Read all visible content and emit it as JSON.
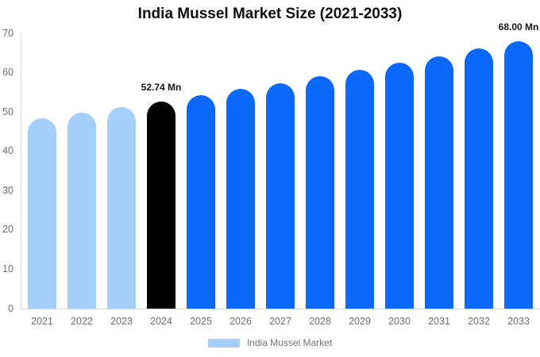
{
  "title": "India Mussel Market Size (2021-2033)",
  "legend": {
    "label": "India Mussel Market",
    "swatch_color": "#a3cffa"
  },
  "colors": {
    "historical_bar": "#a3cffa",
    "base_year_bar": "#000000",
    "forecast_bar": "#0a68fb",
    "axis_line": "#d8d8d8",
    "tick_text": "#6f6f6f",
    "title_text": "#0f0f0f",
    "data_label_text": "#141414",
    "background": "#ffffff"
  },
  "chart_data": {
    "type": "bar",
    "title": "India Mussel Market Size (2021-2033)",
    "unit": "Mn",
    "categories": [
      "2021",
      "2022",
      "2023",
      "2024",
      "2025",
      "2026",
      "2027",
      "2028",
      "2029",
      "2030",
      "2031",
      "2032",
      "2033"
    ],
    "values": [
      48.46,
      49.85,
      51.27,
      52.74,
      54.25,
      55.8,
      57.39,
      59.04,
      60.72,
      62.46,
      64.25,
      66.08,
      68.0
    ],
    "bar_colors": [
      "#a3cffa",
      "#a3cffa",
      "#a3cffa",
      "#000000",
      "#0a68fb",
      "#0a68fb",
      "#0a68fb",
      "#0a68fb",
      "#0a68fb",
      "#0a68fb",
      "#0a68fb",
      "#0a68fb",
      "#0a68fb"
    ],
    "ylim": [
      0,
      70
    ],
    "yticks": [
      0,
      10,
      20,
      30,
      40,
      50,
      60,
      70
    ],
    "grid": false,
    "legend_position": "bottom",
    "legend_entries": [
      "India Mussel Market"
    ],
    "xlabel": "",
    "ylabel": "",
    "data_labels": [
      {
        "category": "2024",
        "text": "52.74 Mn"
      },
      {
        "category": "2033",
        "text": "68.00 Mn"
      }
    ]
  }
}
